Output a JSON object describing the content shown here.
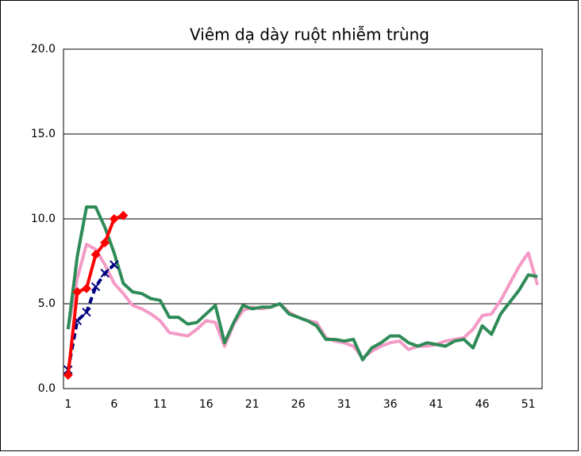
{
  "chart_data": {
    "type": "line",
    "title": "Viêm dạ dày ruột nhiễm trùng",
    "categories": [
      1,
      null,
      null,
      null,
      null,
      6,
      null,
      null,
      null,
      null,
      11,
      null,
      null,
      null,
      null,
      16,
      null,
      null,
      null,
      null,
      21,
      null,
      null,
      null,
      null,
      26,
      null,
      null,
      null,
      null,
      31,
      null,
      null,
      null,
      null,
      36,
      null,
      null,
      null,
      null,
      41,
      null,
      null,
      null,
      null,
      46,
      null,
      null,
      null,
      null,
      51,
      null
    ],
    "ylim": [
      0,
      20
    ],
    "yticks": [
      {
        "value": 0,
        "label": "0.0"
      },
      {
        "value": 5,
        "label": "5.0"
      },
      {
        "value": 10,
        "label": "10.0"
      },
      {
        "value": 15,
        "label": "15.0"
      },
      {
        "value": 20,
        "label": "20.0"
      }
    ],
    "grid": true,
    "series": [
      {
        "color": "#f49ac6",
        "width": 4,
        "values": [
          3.5,
          6.5,
          8.5,
          8.2,
          7.3,
          6.2,
          5.6,
          4.9,
          4.7,
          4.4,
          4.0,
          3.3,
          3.2,
          3.1,
          3.5,
          4.0,
          3.9,
          2.5,
          3.8,
          4.6,
          4.8,
          4.7,
          4.8,
          5.0,
          4.5,
          4.2,
          4.0,
          3.9,
          3.0,
          2.8,
          2.7,
          2.5,
          1.8,
          2.2,
          2.5,
          2.7,
          2.8,
          2.3,
          2.5,
          2.5,
          2.6,
          2.8,
          2.9,
          3.0,
          3.5,
          4.3,
          4.4,
          5.2,
          6.2,
          7.2,
          8.0,
          6.1
        ]
      },
      {
        "color": "#2e8b57",
        "width": 4,
        "values": [
          3.5,
          7.8,
          10.7,
          10.7,
          9.5,
          8.0,
          6.2,
          5.7,
          5.6,
          5.3,
          5.2,
          4.2,
          4.2,
          3.8,
          3.9,
          4.4,
          4.9,
          2.7,
          3.9,
          4.9,
          4.7,
          4.8,
          4.8,
          5.0,
          4.4,
          4.2,
          4.0,
          3.7,
          2.9,
          2.9,
          2.8,
          2.9,
          1.7,
          2.4,
          2.7,
          3.1,
          3.1,
          2.7,
          2.5,
          2.7,
          2.6,
          2.5,
          2.8,
          2.9,
          2.4,
          3.7,
          3.2,
          4.4,
          5.1,
          5.8,
          6.7,
          6.6
        ]
      },
      {
        "color": "#000080",
        "width": 4,
        "dashed": true,
        "marker": "x",
        "values": [
          1.1,
          4.0,
          4.5,
          6.0,
          6.8,
          7.3,
          null,
          null,
          null,
          null,
          null,
          null,
          null,
          null,
          null,
          null,
          null,
          null,
          null,
          null,
          null,
          null,
          null,
          null,
          null,
          null,
          null,
          null,
          null,
          null,
          null,
          null,
          null,
          null,
          null,
          null,
          null,
          null,
          null,
          null,
          null,
          null,
          null,
          null,
          null,
          null,
          null,
          null,
          null,
          null,
          null,
          null
        ]
      },
      {
        "color": "#ff0000",
        "width": 4,
        "marker": "diamond",
        "values": [
          0.8,
          5.7,
          5.9,
          7.9,
          8.6,
          10.0,
          10.2,
          null,
          null,
          null,
          null,
          null,
          null,
          null,
          null,
          null,
          null,
          null,
          null,
          null,
          null,
          null,
          null,
          null,
          null,
          null,
          null,
          null,
          null,
          null,
          null,
          null,
          null,
          null,
          null,
          null,
          null,
          null,
          null,
          null,
          null,
          null,
          null,
          null,
          null,
          null,
          null,
          null,
          null,
          null,
          null,
          null
        ]
      }
    ]
  }
}
